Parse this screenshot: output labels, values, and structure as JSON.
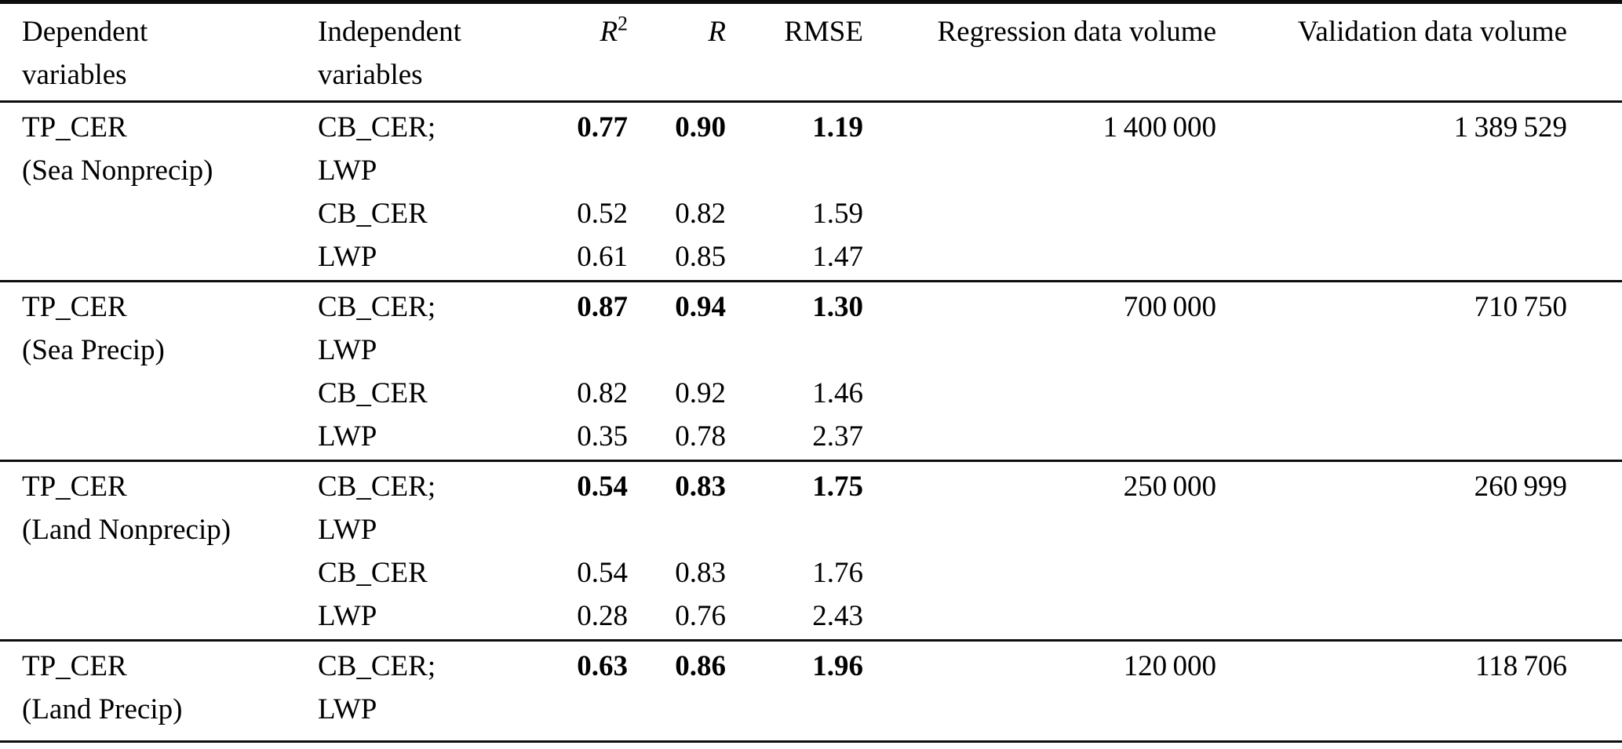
{
  "table": {
    "header": {
      "dependent_lines": [
        "Dependent",
        "variables"
      ],
      "independent_lines": [
        "Independent",
        "variables"
      ],
      "r2_base": "R",
      "r2_sup": "2",
      "r_label": "R",
      "rmse_label": "RMSE",
      "regression_label": "Regression data volume",
      "validation_label": "Validation data volume"
    },
    "blocks": [
      {
        "dependent_lines": [
          "TP_CER",
          "(Sea Nonprecip)"
        ],
        "rows": [
          {
            "independent_lines": [
              "CB_CER;",
              "LWP"
            ],
            "r2": "0.77",
            "r": "0.90",
            "rmse": "1.19",
            "bold": true,
            "regression_volume": "1 400 000",
            "validation_volume": "1 389 529"
          },
          {
            "independent": "CB_CER",
            "r2": "0.52",
            "r": "0.82",
            "rmse": "1.59",
            "bold": false
          },
          {
            "independent": "LWP",
            "r2": "0.61",
            "r": "0.85",
            "rmse": "1.47",
            "bold": false
          }
        ]
      },
      {
        "dependent_lines": [
          "TP_CER",
          "(Sea Precip)"
        ],
        "rows": [
          {
            "independent_lines": [
              "CB_CER;",
              "LWP"
            ],
            "r2": "0.87",
            "r": "0.94",
            "rmse": "1.30",
            "bold": true,
            "regression_volume": "700 000",
            "validation_volume": "710 750"
          },
          {
            "independent": "CB_CER",
            "r2": "0.82",
            "r": "0.92",
            "rmse": "1.46",
            "bold": false
          },
          {
            "independent": "LWP",
            "r2": "0.35",
            "r": "0.78",
            "rmse": "2.37",
            "bold": false
          }
        ]
      },
      {
        "dependent_lines": [
          "TP_CER",
          "(Land Nonprecip)"
        ],
        "rows": [
          {
            "independent_lines": [
              "CB_CER;",
              "LWP"
            ],
            "r2": "0.54",
            "r": "0.83",
            "rmse": "1.75",
            "bold": true,
            "regression_volume": "250 000",
            "validation_volume": "260 999"
          },
          {
            "independent": "CB_CER",
            "r2": "0.54",
            "r": "0.83",
            "rmse": "1.76",
            "bold": false
          },
          {
            "independent": "LWP",
            "r2": "0.28",
            "r": "0.76",
            "rmse": "2.43",
            "bold": false
          }
        ]
      },
      {
        "dependent_lines": [
          "TP_CER",
          "(Land Precip)"
        ],
        "rows": [
          {
            "independent_lines": [
              "CB_CER;",
              "LWP"
            ],
            "r2": "0.63",
            "r": "0.86",
            "rmse": "1.96",
            "bold": true,
            "regression_volume": "120 000",
            "validation_volume": "118 706"
          }
        ]
      }
    ]
  }
}
